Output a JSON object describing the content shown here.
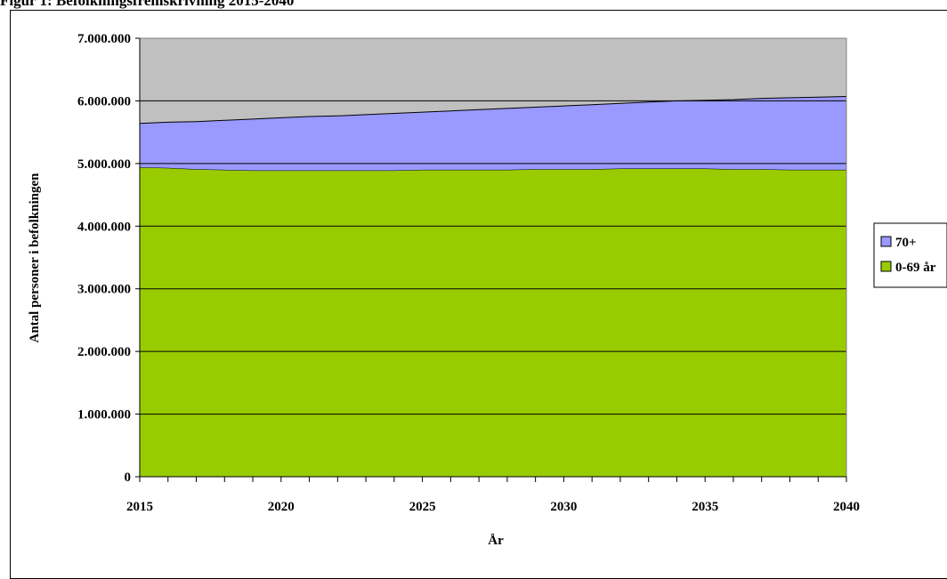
{
  "figure": {
    "title": "Figur 1: Befolkningsfremskrivning 2015-2040"
  },
  "chart_data": {
    "type": "area",
    "stacked": true,
    "title": "",
    "xlabel": "År",
    "ylabel": "Antal personer i befolkningen",
    "x": [
      2015,
      2016,
      2017,
      2018,
      2019,
      2020,
      2021,
      2022,
      2023,
      2024,
      2025,
      2026,
      2027,
      2028,
      2029,
      2030,
      2031,
      2032,
      2033,
      2034,
      2035,
      2036,
      2037,
      2038,
      2039,
      2040
    ],
    "xlim": [
      2015,
      2040
    ],
    "ylim": [
      0,
      7000000
    ],
    "x_ticks": [
      2015,
      2020,
      2025,
      2030,
      2035,
      2040
    ],
    "x_tick_labels": [
      "2015",
      "2020",
      "2025",
      "2030",
      "2035",
      "2040"
    ],
    "y_ticks": [
      0,
      1000000,
      2000000,
      3000000,
      4000000,
      5000000,
      6000000,
      7000000
    ],
    "y_tick_labels": [
      "0",
      "1.000.000",
      "2.000.000",
      "3.000.000",
      "4.000.000",
      "5.000.000",
      "6.000.000",
      "7.000.000"
    ],
    "grid": true,
    "legend_position": "right",
    "plot_background": "#c0c0c0",
    "series": [
      {
        "name": "0-69 år",
        "color": "#99cc00",
        "values": [
          4940000,
          4930000,
          4910000,
          4900000,
          4890000,
          4890000,
          4890000,
          4890000,
          4890000,
          4890000,
          4900000,
          4900000,
          4900000,
          4900000,
          4910000,
          4910000,
          4910000,
          4920000,
          4920000,
          4920000,
          4920000,
          4910000,
          4910000,
          4900000,
          4900000,
          4900000
        ]
      },
      {
        "name": "70+",
        "color": "#9999ff",
        "values": [
          700000,
          730000,
          760000,
          790000,
          820000,
          840000,
          860000,
          870000,
          890000,
          910000,
          920000,
          940000,
          960000,
          980000,
          990000,
          1010000,
          1030000,
          1040000,
          1060000,
          1080000,
          1090000,
          1110000,
          1130000,
          1150000,
          1160000,
          1170000
        ]
      }
    ],
    "legend": [
      {
        "label": "70+",
        "color": "#9999ff"
      },
      {
        "label": "0-69 år",
        "color": "#99cc00"
      }
    ]
  }
}
